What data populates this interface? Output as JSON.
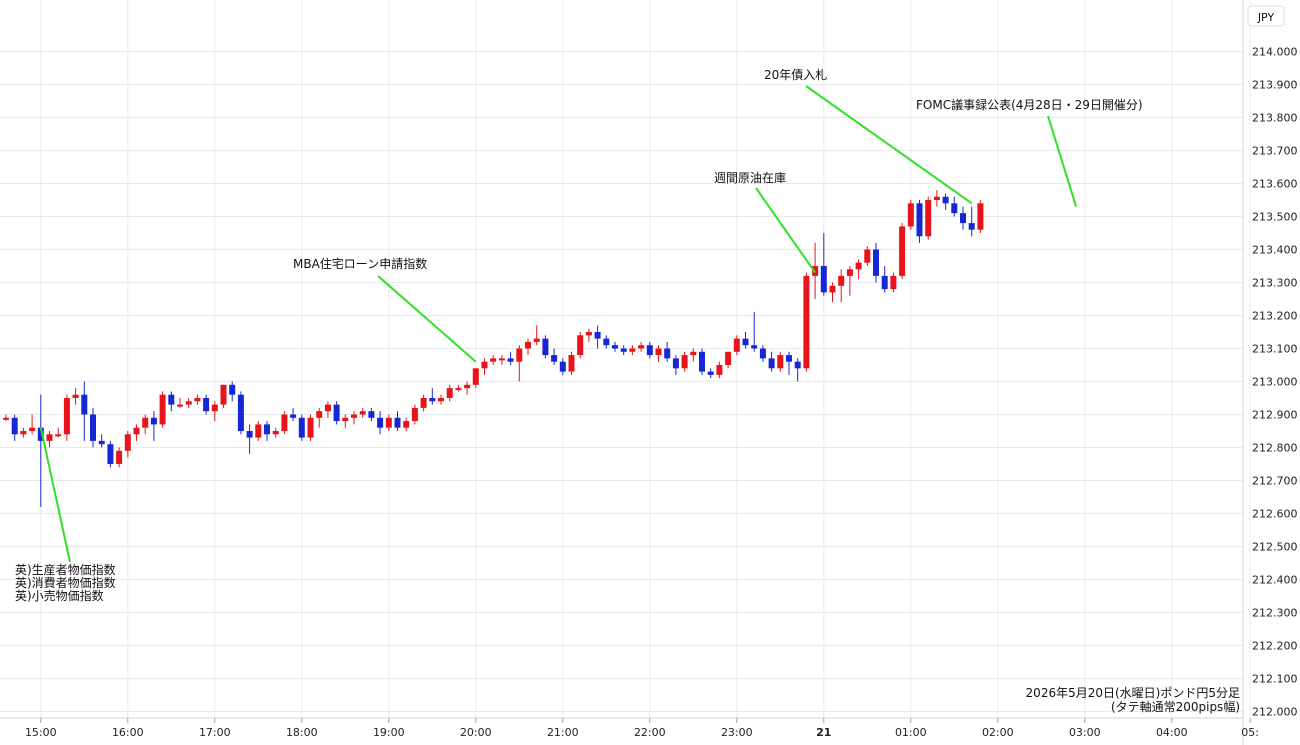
{
  "chart_data": {
    "type": "candlestick",
    "currency_label": "JPY",
    "ylim": [
      212.0,
      214.15
    ],
    "y_ticks": [
      "214.000",
      "213.900",
      "213.800",
      "213.700",
      "213.600",
      "213.500",
      "213.400",
      "213.300",
      "213.200",
      "213.100",
      "213.000",
      "212.900",
      "212.800",
      "212.700",
      "212.600",
      "212.500",
      "212.400",
      "212.300",
      "212.200",
      "212.100",
      "212.000"
    ],
    "x_ticks": [
      {
        "label": "15:00",
        "index": 4
      },
      {
        "label": "16:00",
        "index": 14
      },
      {
        "label": "17:00",
        "index": 24
      },
      {
        "label": "18:00",
        "index": 34
      },
      {
        "label": "19:00",
        "index": 44
      },
      {
        "label": "20:00",
        "index": 54
      },
      {
        "label": "21:00",
        "index": 64
      },
      {
        "label": "22:00",
        "index": 74
      },
      {
        "label": "23:00",
        "index": 84
      },
      {
        "label": "21",
        "index": 94,
        "bold": true
      },
      {
        "label": "01:00",
        "index": 104
      },
      {
        "label": "02:00",
        "index": 114
      },
      {
        "label": "03:00",
        "index": 124
      },
      {
        "label": "04:00",
        "index": 134
      },
      {
        "label": "05:",
        "index": 143
      }
    ],
    "caption_line1": "2026年5月20日(水曜日)ポンド円5分足",
    "caption_line2": "(タテ軸通常200pips幅)",
    "colors": {
      "up": "#e8141b",
      "down": "#1628d6",
      "annotation_line": "#33e026"
    },
    "candles": [
      [
        212.89,
        212.9,
        212.88,
        212.89
      ],
      [
        212.89,
        212.9,
        212.82,
        212.84
      ],
      [
        212.84,
        212.86,
        212.83,
        212.85
      ],
      [
        212.85,
        212.9,
        212.84,
        212.86
      ],
      [
        212.86,
        212.96,
        212.62,
        212.82
      ],
      [
        212.82,
        212.85,
        212.8,
        212.84
      ],
      [
        212.84,
        212.86,
        212.83,
        212.84
      ],
      [
        212.84,
        212.96,
        212.82,
        212.95
      ],
      [
        212.95,
        212.98,
        212.93,
        212.96
      ],
      [
        212.96,
        213.0,
        212.82,
        212.9
      ],
      [
        212.9,
        212.92,
        212.8,
        212.82
      ],
      [
        212.82,
        212.84,
        212.8,
        212.81
      ],
      [
        212.81,
        212.82,
        212.74,
        212.75
      ],
      [
        212.75,
        212.8,
        212.74,
        212.79
      ],
      [
        212.79,
        212.85,
        212.77,
        212.84
      ],
      [
        212.84,
        212.87,
        212.82,
        212.86
      ],
      [
        212.86,
        212.9,
        212.84,
        212.89
      ],
      [
        212.89,
        212.91,
        212.82,
        212.87
      ],
      [
        212.87,
        212.97,
        212.86,
        212.96
      ],
      [
        212.96,
        212.97,
        212.91,
        212.93
      ],
      [
        212.93,
        212.95,
        212.92,
        212.93
      ],
      [
        212.93,
        212.95,
        212.92,
        212.94
      ],
      [
        212.94,
        212.96,
        212.93,
        212.95
      ],
      [
        212.95,
        212.96,
        212.9,
        212.91
      ],
      [
        212.91,
        212.94,
        212.88,
        212.93
      ],
      [
        212.93,
        212.99,
        212.92,
        212.99
      ],
      [
        212.99,
        213.0,
        212.94,
        212.96
      ],
      [
        212.96,
        212.97,
        212.84,
        212.85
      ],
      [
        212.85,
        212.87,
        212.78,
        212.83
      ],
      [
        212.83,
        212.88,
        212.82,
        212.87
      ],
      [
        212.87,
        212.88,
        212.82,
        212.84
      ],
      [
        212.84,
        212.86,
        212.83,
        212.85
      ],
      [
        212.85,
        212.91,
        212.84,
        212.9
      ],
      [
        212.9,
        212.92,
        212.88,
        212.89
      ],
      [
        212.89,
        212.9,
        212.82,
        212.83
      ],
      [
        212.83,
        212.9,
        212.82,
        212.89
      ],
      [
        212.89,
        212.92,
        212.86,
        212.91
      ],
      [
        212.91,
        212.94,
        212.89,
        212.93
      ],
      [
        212.93,
        212.94,
        212.87,
        212.88
      ],
      [
        212.88,
        212.9,
        212.86,
        212.89
      ],
      [
        212.89,
        212.91,
        212.87,
        212.9
      ],
      [
        212.9,
        212.92,
        212.89,
        212.91
      ],
      [
        212.91,
        212.92,
        212.88,
        212.89
      ],
      [
        212.89,
        212.91,
        212.84,
        212.86
      ],
      [
        212.86,
        212.9,
        212.85,
        212.89
      ],
      [
        212.89,
        212.91,
        212.85,
        212.86
      ],
      [
        212.86,
        212.89,
        212.85,
        212.88
      ],
      [
        212.88,
        212.93,
        212.87,
        212.92
      ],
      [
        212.92,
        212.96,
        212.91,
        212.95
      ],
      [
        212.95,
        212.98,
        212.93,
        212.94
      ],
      [
        212.94,
        212.96,
        212.93,
        212.95
      ],
      [
        212.95,
        212.99,
        212.94,
        212.98
      ],
      [
        212.98,
        212.99,
        212.97,
        212.98
      ],
      [
        212.98,
        213.0,
        212.96,
        212.99
      ],
      [
        212.99,
        213.04,
        212.98,
        213.04
      ],
      [
        213.04,
        213.07,
        213.02,
        213.06
      ],
      [
        213.06,
        213.08,
        213.05,
        213.07
      ],
      [
        213.07,
        213.08,
        213.05,
        213.07
      ],
      [
        213.07,
        213.09,
        213.05,
        213.06
      ],
      [
        213.06,
        213.11,
        213.0,
        213.1
      ],
      [
        213.1,
        213.13,
        213.08,
        213.12
      ],
      [
        213.12,
        213.17,
        213.11,
        213.13
      ],
      [
        213.13,
        213.14,
        213.07,
        213.08
      ],
      [
        213.08,
        213.1,
        213.05,
        213.06
      ],
      [
        213.06,
        213.07,
        213.02,
        213.03
      ],
      [
        213.03,
        213.09,
        213.02,
        213.08
      ],
      [
        213.08,
        213.15,
        213.07,
        213.14
      ],
      [
        213.14,
        213.16,
        213.12,
        213.15
      ],
      [
        213.15,
        213.17,
        213.1,
        213.13
      ],
      [
        213.13,
        213.14,
        213.1,
        213.11
      ],
      [
        213.11,
        213.12,
        213.09,
        213.1
      ],
      [
        213.1,
        213.11,
        213.08,
        213.09
      ],
      [
        213.09,
        213.11,
        213.08,
        213.1
      ],
      [
        213.1,
        213.12,
        213.09,
        213.11
      ],
      [
        213.11,
        213.12,
        213.07,
        213.08
      ],
      [
        213.08,
        213.11,
        213.06,
        213.1
      ],
      [
        213.1,
        213.12,
        213.06,
        213.07
      ],
      [
        213.07,
        213.08,
        213.02,
        213.04
      ],
      [
        213.04,
        213.09,
        213.03,
        213.08
      ],
      [
        213.08,
        213.1,
        213.06,
        213.09
      ],
      [
        213.09,
        213.1,
        213.02,
        213.03
      ],
      [
        213.03,
        213.04,
        213.01,
        213.02
      ],
      [
        213.02,
        213.06,
        213.01,
        213.05
      ],
      [
        213.05,
        213.09,
        213.04,
        213.09
      ],
      [
        213.09,
        213.14,
        213.08,
        213.13
      ],
      [
        213.13,
        213.15,
        213.1,
        213.11
      ],
      [
        213.11,
        213.21,
        213.09,
        213.1
      ],
      [
        213.1,
        213.11,
        213.06,
        213.07
      ],
      [
        213.07,
        213.09,
        213.03,
        213.04
      ],
      [
        213.04,
        213.09,
        213.03,
        213.08
      ],
      [
        213.08,
        213.09,
        213.02,
        213.06
      ],
      [
        213.06,
        213.07,
        213.0,
        213.04
      ],
      [
        213.04,
        213.33,
        213.03,
        213.32
      ],
      [
        213.32,
        213.42,
        213.25,
        213.35
      ],
      [
        213.35,
        213.45,
        213.26,
        213.27
      ],
      [
        213.27,
        213.3,
        213.24,
        213.29
      ],
      [
        213.29,
        213.34,
        213.24,
        213.32
      ],
      [
        213.32,
        213.35,
        213.26,
        213.34
      ],
      [
        213.34,
        213.37,
        213.31,
        213.36
      ],
      [
        213.36,
        213.41,
        213.35,
        213.4
      ],
      [
        213.4,
        213.42,
        213.3,
        213.32
      ],
      [
        213.32,
        213.35,
        213.27,
        213.28
      ],
      [
        213.28,
        213.33,
        213.27,
        213.32
      ],
      [
        213.32,
        213.48,
        213.31,
        213.47
      ],
      [
        213.47,
        213.55,
        213.46,
        213.54
      ],
      [
        213.54,
        213.55,
        213.42,
        213.44
      ],
      [
        213.44,
        213.56,
        213.43,
        213.55
      ],
      [
        213.55,
        213.58,
        213.53,
        213.56
      ],
      [
        213.56,
        213.57,
        213.52,
        213.54
      ],
      [
        213.54,
        213.56,
        213.5,
        213.51
      ],
      [
        213.51,
        213.53,
        213.46,
        213.48
      ],
      [
        213.48,
        213.53,
        213.44,
        213.46
      ],
      [
        213.46,
        213.55,
        213.45,
        213.54
      ]
    ],
    "annotations": [
      {
        "lines": [
          "英)生産者物価指数",
          "英)消費者物価指数",
          "英)小売物価指数"
        ],
        "index": 4,
        "price": 212.86
      },
      {
        "lines": [
          "MBA住宅ローン申請指数"
        ],
        "index": 54,
        "price": 213.06
      },
      {
        "lines": [
          "週間原油在庫"
        ],
        "index": 93,
        "price": 213.33
      },
      {
        "lines": [
          "20年債入札"
        ],
        "index": 111,
        "price": 213.54
      },
      {
        "lines": [
          "FOMC議事録公表(4月28日・29日開催分)"
        ],
        "index": 123,
        "price": 213.53
      }
    ]
  }
}
